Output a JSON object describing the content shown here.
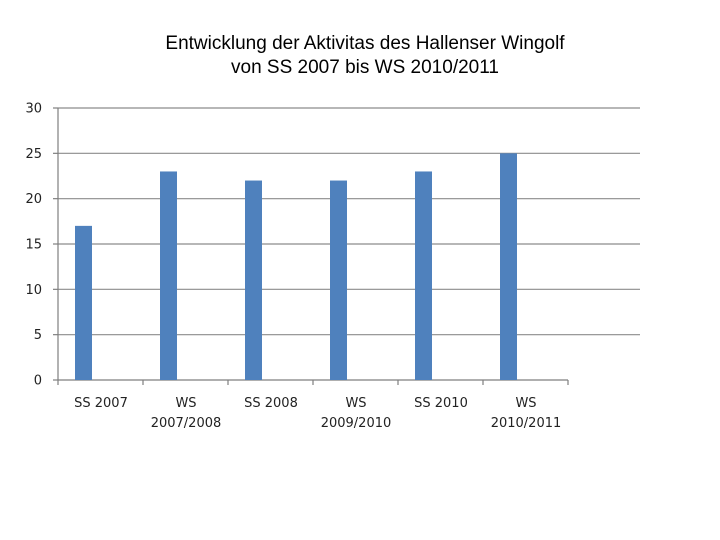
{
  "chart_data": {
    "type": "bar",
    "title_line1": "Entwicklung der Aktivitas des Hallenser Wingolf",
    "title_line2": "von SS 2007 bis WS 2010/2011",
    "categories": [
      [
        "SS 2007"
      ],
      [
        "WS",
        "2007/2008"
      ],
      [
        "SS 2008"
      ],
      [
        "WS",
        "2009/2010"
      ],
      [
        "SS 2010"
      ],
      [
        "WS",
        "2010/2011"
      ]
    ],
    "values": [
      17,
      23,
      22,
      22,
      23,
      25
    ],
    "ylim": [
      0,
      30
    ],
    "yticks": [
      0,
      5,
      10,
      15,
      20,
      25,
      30
    ],
    "grid": true,
    "colors": {
      "bar": "#4f81bd",
      "grid": "#8c8c8c",
      "axis": "#7f7f7f"
    }
  }
}
